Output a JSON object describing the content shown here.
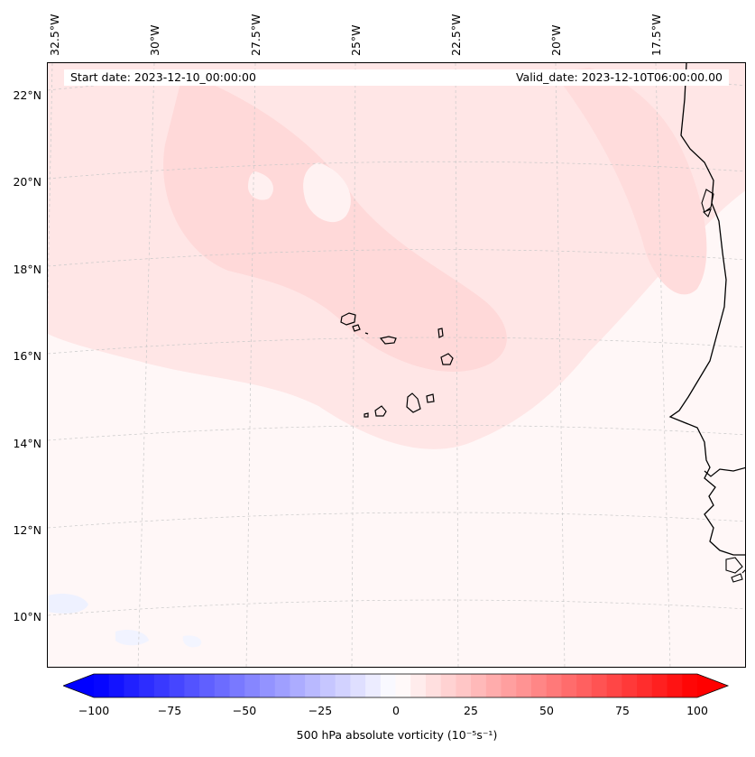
{
  "map": {
    "start_date": "Start date: 2023-12-10_00:00:00",
    "valid_date": "Valid_date: 2023-12-10T06:00:00.00",
    "field": "500 hPa absolute vorticity",
    "lon_labels": [
      "32.5°W",
      "30°W",
      "27.5°W",
      "25°W",
      "22.5°W",
      "20°W",
      "17.5°W"
    ],
    "lat_labels": [
      "22°N",
      "20°N",
      "18°N",
      "16°N",
      "14°N",
      "12°N",
      "10°N"
    ],
    "extent": {
      "lon_min": -33.0,
      "lon_max": -15.8,
      "lat_min": 8.8,
      "lat_max": 22.8
    },
    "colors": {
      "background_field": "#fff7f7",
      "positive_weak": "#ffe3e3",
      "positive_moderate": "#ffd6d6",
      "negative_weak": "#f3f5ff",
      "coastline": "#000000",
      "gridline": "#c8c8c8"
    }
  },
  "colorbar": {
    "label": "500 hPa absolute vorticity (10⁻⁵s⁻¹)",
    "ticks": [
      "−100",
      "−75",
      "−50",
      "−25",
      "0",
      "25",
      "50",
      "75",
      "100"
    ],
    "vmin": -100,
    "vmax": 100,
    "extend": "both",
    "cmap": "bwr",
    "low_color": "#0000ff",
    "mid_color": "#ffffff",
    "high_color": "#ff0000"
  }
}
